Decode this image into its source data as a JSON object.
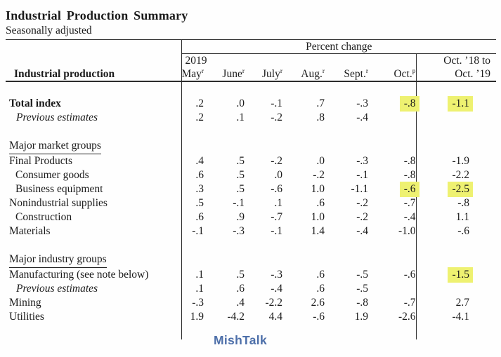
{
  "page": {
    "title": "Industrial Production Summary",
    "subtitle": "Seasonally adjusted",
    "logo": "MishTalk"
  },
  "colors": {
    "highlight": "#eef171",
    "logo_blue": "#4d6fa9"
  },
  "table": {
    "group_header": "Percent change",
    "year_label": "2019",
    "row_header_label": "Industrial production",
    "columns": [
      {
        "label": "May",
        "sup": "r"
      },
      {
        "label": "June",
        "sup": "r"
      },
      {
        "label": "July",
        "sup": "r"
      },
      {
        "label": "Aug.",
        "sup": "r"
      },
      {
        "label": "Sept.",
        "sup": "r"
      },
      {
        "label": "Oct.",
        "sup": "p"
      }
    ],
    "last_column": {
      "line1": "Oct. ’18 to",
      "line2": "Oct. ’19"
    },
    "rows": [
      {
        "label": "Total index",
        "values": [
          ".2",
          ".0",
          "-.1",
          ".7",
          "-.3",
          "-.8"
        ],
        "yoy": "-1.1"
      },
      {
        "label": "Previous estimates",
        "values": [
          ".2",
          ".1",
          "-.2",
          ".8",
          "-.4",
          ""
        ],
        "yoy": ""
      },
      {
        "label": "Major market groups"
      },
      {
        "label": "Final Products",
        "values": [
          ".4",
          ".5",
          "-.2",
          ".0",
          "-.3",
          "-.8"
        ],
        "yoy": "-1.9"
      },
      {
        "label": "Consumer goods",
        "values": [
          ".6",
          ".5",
          ".0",
          "-.2",
          "-.1",
          "-.8"
        ],
        "yoy": "-2.2"
      },
      {
        "label": "Business equipment",
        "values": [
          ".3",
          ".5",
          "-.6",
          "1.0",
          "-1.1",
          "-.6"
        ],
        "yoy": "-2.5"
      },
      {
        "label": "Nonindustrial supplies",
        "values": [
          ".5",
          "-.1",
          ".1",
          ".6",
          "-.2",
          "-.7"
        ],
        "yoy": "-.8"
      },
      {
        "label": "Construction",
        "values": [
          ".6",
          ".9",
          "-.7",
          "1.0",
          "-.2",
          "-.4"
        ],
        "yoy": "1.1"
      },
      {
        "label": "Materials",
        "values": [
          "-.1",
          "-.3",
          "-.1",
          "1.4",
          "-.4",
          "-1.0"
        ],
        "yoy": "-.6"
      },
      {
        "label": "Major industry groups"
      },
      {
        "label": "Manufacturing (see note below)",
        "values": [
          ".1",
          ".5",
          "-.3",
          ".6",
          "-.5",
          "-.6"
        ],
        "yoy": "-1.5"
      },
      {
        "label": "Previous estimates",
        "values": [
          ".1",
          ".6",
          "-.4",
          ".6",
          "-.5",
          ""
        ],
        "yoy": ""
      },
      {
        "label": "Mining",
        "values": [
          "-.3",
          ".4",
          "-2.2",
          "2.6",
          "-.8",
          "-.7"
        ],
        "yoy": "2.7"
      },
      {
        "label": "Utilities",
        "values": [
          "1.9",
          "-4.2",
          "4.4",
          "-.6",
          "1.9",
          "-2.6"
        ],
        "yoy": "-4.1"
      }
    ]
  }
}
